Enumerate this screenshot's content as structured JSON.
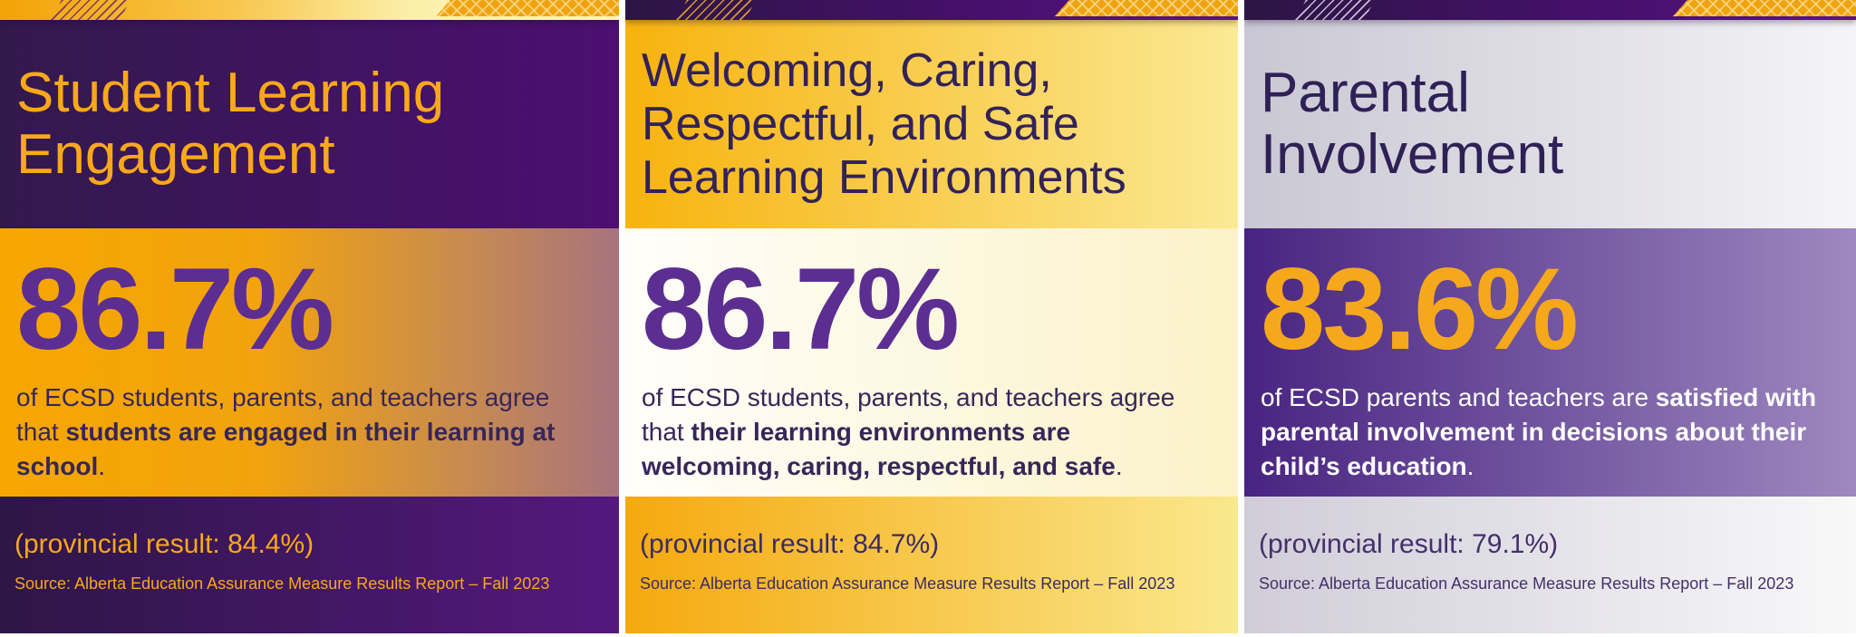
{
  "colors": {
    "brand_gold": "#F5A800",
    "brand_deep_purple": "#31174A",
    "stat_purple": "#5C2E91",
    "stat_gold": "#F5A81C",
    "pale_yellow": "#FBEC9A",
    "light_gray": "#D0CDD8"
  },
  "panels": [
    {
      "title": "Student Learning Engagement",
      "stat": "86.7%",
      "body_prefix": "of ECSD students, parents, and teachers agree that ",
      "body_bold": "students are engaged in their learning at school",
      "body_suffix": ".",
      "provincial": "(provincial result: 84.4%)",
      "source": "Source: Alberta Education Assurance Measure Results Report – Fall 2023"
    },
    {
      "title": "Welcoming, Caring, Respectful, and Safe Learning Environments",
      "stat": "86.7%",
      "body_prefix": "of ECSD students, parents, and teachers agree that ",
      "body_bold": "their learning environments are welcoming, caring, respectful, and safe",
      "body_suffix": ".",
      "provincial": "(provincial result: 84.7%)",
      "source": "Source: Alberta Education Assurance Measure Results Report – Fall 2023"
    },
    {
      "title": "Parental Involvement",
      "stat": "83.6%",
      "body_prefix": "of ECSD parents and teachers are ",
      "body_bold": "satisfied with parental involvement in decisions about their child’s education",
      "body_suffix": ".",
      "provincial": "(provincial result: 79.1%)",
      "source": "Source: Alberta Education Assurance Measure Results Report – Fall 2023"
    }
  ]
}
